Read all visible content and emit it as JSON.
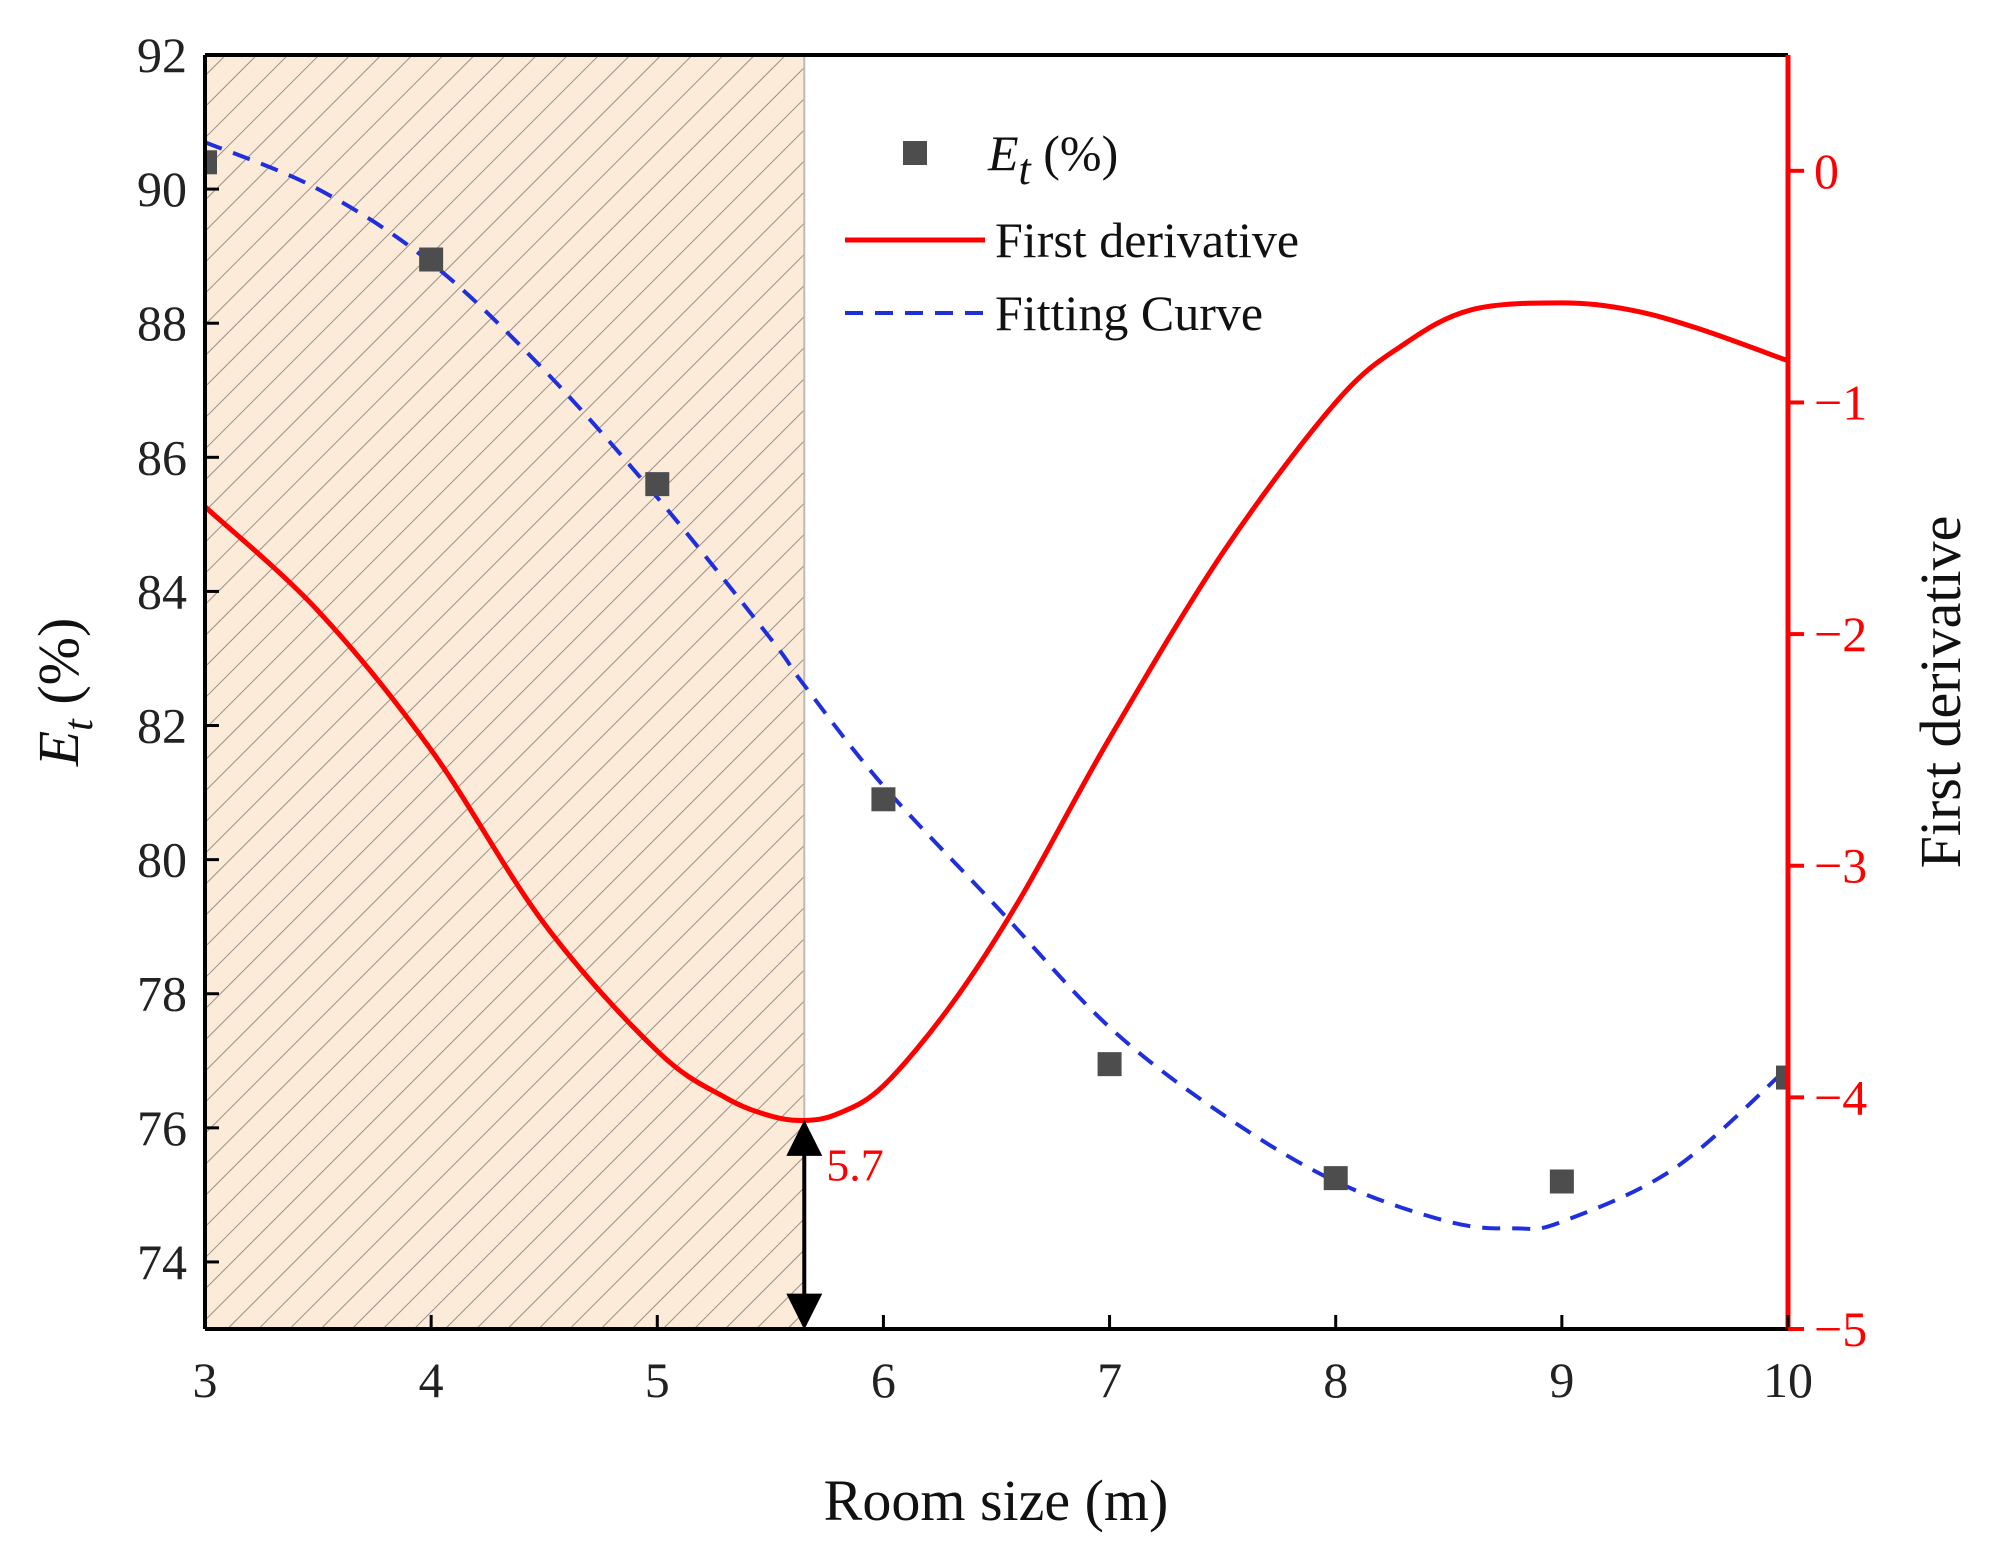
{
  "chart_data": {
    "type": "line",
    "xlabel": "Room size (m)",
    "ylabel_left": {
      "symbol": "E",
      "subscript": "t",
      "unit": " (%)"
    },
    "ylabel_right": "First derivative",
    "xlim": [
      3,
      10
    ],
    "ylim_left": [
      73,
      92
    ],
    "ylim_right": [
      -5,
      0.5
    ],
    "x_ticks": [
      3,
      4,
      5,
      6,
      7,
      8,
      9,
      10
    ],
    "x_tick_labels": [
      "3",
      "4",
      "5",
      "6",
      "7",
      "8",
      "9",
      "10"
    ],
    "y_left_ticks": [
      74,
      76,
      78,
      80,
      82,
      84,
      86,
      88,
      90,
      92
    ],
    "y_left_tick_labels": [
      "74",
      "76",
      "78",
      "80",
      "82",
      "84",
      "86",
      "88",
      "90",
      "92"
    ],
    "y_right_ticks": [
      0,
      -1,
      -2,
      -3,
      -4,
      -5
    ],
    "y_right_tick_labels": [
      "0",
      "−1",
      "−2",
      "−3",
      "−4",
      "−5"
    ],
    "series": [
      {
        "name": "Et (%)",
        "kind": "scatter",
        "axis": "left",
        "x": [
          3,
          4,
          5,
          6,
          7,
          8,
          9,
          10
        ],
        "y": [
          90.4,
          88.95,
          85.6,
          80.9,
          76.95,
          75.25,
          75.2,
          76.75
        ]
      },
      {
        "name": "First derivative",
        "kind": "line",
        "axis": "right",
        "x": [
          3.0,
          3.5,
          4.0,
          4.5,
          5.0,
          5.3,
          5.5,
          5.65,
          5.8,
          6.0,
          6.3,
          6.6,
          7.0,
          7.5,
          8.0,
          8.3,
          8.6,
          9.0,
          9.3,
          9.6,
          10.0
        ],
        "y": [
          -1.45,
          -1.9,
          -2.5,
          -3.25,
          -3.8,
          -4.0,
          -4.08,
          -4.1,
          -4.07,
          -3.95,
          -3.6,
          -3.15,
          -2.45,
          -1.65,
          -1.0,
          -0.75,
          -0.6,
          -0.57,
          -0.6,
          -0.68,
          -0.82
        ]
      },
      {
        "name": "Fitting Curve",
        "kind": "line",
        "style": "dashed",
        "axis": "left",
        "x": [
          3.0,
          3.5,
          4.0,
          4.5,
          5.0,
          5.5,
          5.65,
          6.0,
          6.5,
          7.0,
          7.5,
          8.0,
          8.5,
          8.8,
          9.0,
          9.5,
          10.0
        ],
        "y": [
          90.7,
          90.0,
          88.9,
          87.3,
          85.4,
          83.3,
          82.6,
          81.1,
          79.3,
          77.5,
          76.2,
          75.2,
          74.6,
          74.5,
          74.6,
          75.4,
          76.9
        ]
      }
    ],
    "legend": {
      "placement": "top-center",
      "entries": [
        {
          "label_symbol": "E",
          "label_subscript": "t",
          "label_suffix": " (%)",
          "marker": "square"
        },
        {
          "label": "First derivative",
          "marker": "solid-line"
        },
        {
          "label": "Fitting Curve",
          "marker": "dashed-line"
        }
      ]
    },
    "shaded_region": {
      "x": [
        3,
        5.65
      ],
      "fill": "hatched"
    },
    "annotation": {
      "label": "5.7",
      "x": 5.65,
      "arrow": "double-headed vertical arrow from the x-axis to the first-derivative minimum"
    }
  },
  "colors": {
    "scatter": "#4d4d4d",
    "derivative": "#ff0000",
    "fitting": "#1f2fdc",
    "shade": "#fcebd9",
    "hatch": "#9a8f86",
    "axis": "#000000",
    "right_axis": "#ff0000"
  }
}
